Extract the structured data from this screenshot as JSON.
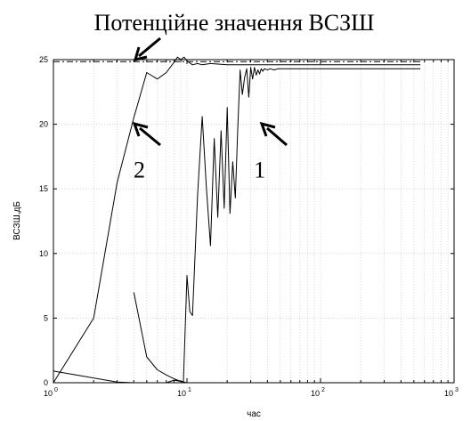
{
  "chart_data": {
    "type": "line",
    "title": "Потенційне значення ВСЗШ",
    "xlabel": "час",
    "ylabel": "ВСЗШ,дБ",
    "xscale": "log",
    "xlim": [
      1,
      1000
    ],
    "ylim": [
      0,
      25
    ],
    "x_ticks": [
      {
        "value": 1,
        "base": "10",
        "exp": "0"
      },
      {
        "value": 10,
        "base": "10",
        "exp": "1"
      },
      {
        "value": 100,
        "base": "10",
        "exp": "2"
      },
      {
        "value": 1000,
        "base": "10",
        "exp": "3"
      }
    ],
    "y_ticks": [
      0,
      5,
      10,
      15,
      20,
      25
    ],
    "grid": "dotted",
    "series": [
      {
        "id": "1",
        "x": [
          1,
          3,
          4,
          5,
          6,
          7,
          8,
          9,
          9.4,
          10,
          10.5,
          11,
          12,
          13,
          14,
          15,
          16,
          17,
          18,
          19,
          20,
          21,
          22,
          23,
          24,
          25,
          26,
          27,
          28,
          29,
          30,
          31,
          32,
          33,
          34,
          35,
          36,
          37,
          38,
          40,
          42,
          45,
          48,
          55,
          70,
          100,
          150,
          200,
          300,
          560
        ],
        "y": [
          0.9,
          0.05,
          0.0,
          0.0,
          0.0,
          0.0,
          0.2,
          0.1,
          0.1,
          8.3,
          5.5,
          5.2,
          14.5,
          20.6,
          15.0,
          10.6,
          18.9,
          12.8,
          19.5,
          13.5,
          21.3,
          13.1,
          17.1,
          14.3,
          19.6,
          24.2,
          22.3,
          23.6,
          24.3,
          22.1,
          24.4,
          23.5,
          24.4,
          23.8,
          24.2,
          23.9,
          24.3,
          24.1,
          24.3,
          24.2,
          24.3,
          24.2,
          24.3,
          24.3,
          24.3,
          24.3,
          24.3,
          24.3,
          24.3,
          24.3
        ]
      },
      {
        "id": "2",
        "x": [
          1,
          2,
          3,
          4,
          5,
          6,
          7,
          8,
          8.5,
          9,
          9.5,
          10,
          11,
          12,
          13,
          15,
          20,
          50,
          100,
          560
        ],
        "y": [
          0.0,
          5.0,
          15.5,
          20.5,
          24.0,
          23.5,
          24.0,
          24.8,
          25.2,
          25.0,
          25.2,
          24.9,
          24.6,
          24.7,
          24.6,
          24.7,
          24.6,
          24.6,
          24.6,
          24.6
        ]
      },
      {
        "id": "peak",
        "x": [
          4,
          5,
          6,
          7,
          8,
          9,
          10
        ],
        "y": [
          7.0,
          2.0,
          1.0,
          0.6,
          0.3,
          0.1,
          0.0
        ]
      },
      {
        "id": "potential",
        "style": "dash-dot",
        "x": [
          1,
          560
        ],
        "y": [
          24.85,
          24.85
        ]
      }
    ],
    "annotations": [
      {
        "text": "1",
        "x": 35,
        "y": 16.5
      },
      {
        "text": "2",
        "x": 4.4,
        "y": 16.5
      }
    ]
  }
}
